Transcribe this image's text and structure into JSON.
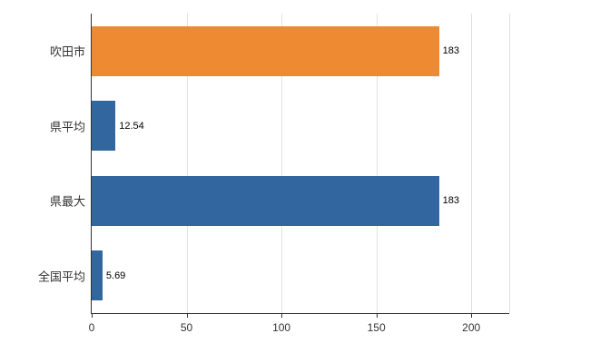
{
  "chart_data": {
    "type": "bar",
    "orientation": "horizontal",
    "title": "",
    "xlabel": "",
    "ylabel": "",
    "categories": [
      "吹田市",
      "県平均",
      "県最大",
      "全国平均"
    ],
    "values": [
      183,
      12.54,
      183,
      5.69
    ],
    "value_labels": [
      "183",
      "12.54",
      "183",
      "5.69"
    ],
    "bar_colors": [
      "#ee8a31",
      "#31679e",
      "#31679e",
      "#31679e"
    ],
    "xlim": [
      0,
      220
    ],
    "x_ticks": [
      0,
      50,
      100,
      150,
      200
    ],
    "x_tick_labels": [
      "0",
      "50",
      "100",
      "150",
      "200"
    ],
    "grid": true,
    "legend": "none"
  },
  "colors": {
    "background": "#ffffff",
    "axis": "#333333",
    "gridline": "#e2e2e2",
    "orange": "#ee8a31",
    "blue": "#31679e"
  }
}
